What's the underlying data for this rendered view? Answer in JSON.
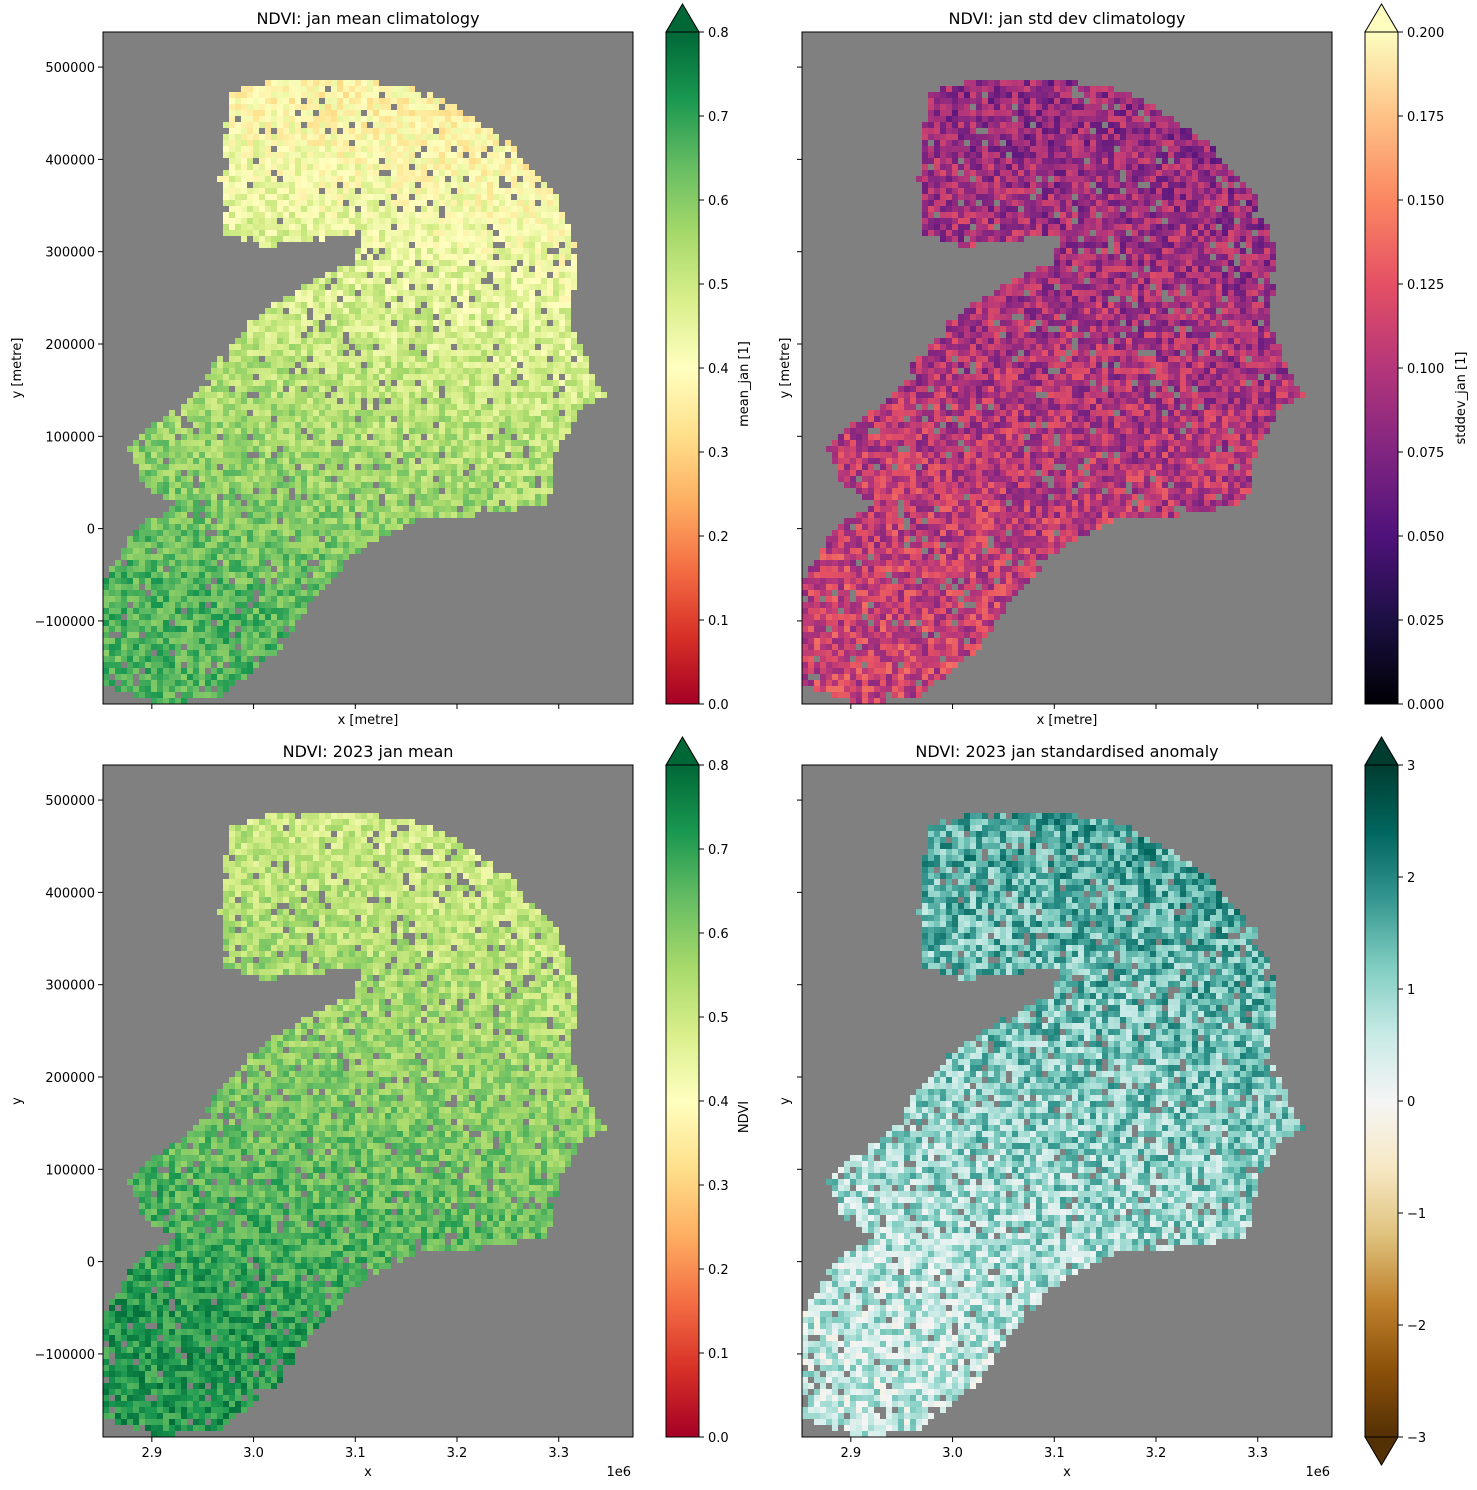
{
  "figure": {
    "background": "#ffffff",
    "nodata_color": "#808080",
    "x_offset_label": "1e6"
  },
  "chart_data": [
    {
      "type": "heatmap",
      "id": "p1",
      "title": "NDVI: jan mean climatology",
      "xlabel": "x [metre]",
      "ylabel": "y [metre]",
      "xlim": [
        2.852,
        3.373
      ],
      "ylim": [
        -190000,
        538000
      ],
      "x_ticks": [
        2.9,
        3.0,
        3.1,
        3.2,
        3.3
      ],
      "x_tick_labels": [],
      "y_ticks": [
        -100000,
        0,
        100000,
        200000,
        300000,
        400000,
        500000
      ],
      "y_tick_labels": [
        "−100000",
        "0",
        "100000",
        "200000",
        "300000",
        "400000",
        "500000"
      ],
      "colormap": "RdYlGn",
      "colormap_stops": [
        "#a50026",
        "#d73027",
        "#f46d43",
        "#fdae61",
        "#fee08b",
        "#ffffbf",
        "#d9ef8b",
        "#a6d96a",
        "#66bd63",
        "#1a9850",
        "#006837"
      ],
      "colorbar_label": "mean_jan [1]",
      "colorbar_range": [
        0.0,
        0.8
      ],
      "colorbar_ticks": [
        0.0,
        0.1,
        0.2,
        0.3,
        0.4,
        0.5,
        0.6,
        0.7,
        0.8
      ],
      "colorbar_tick_labels": [
        "0.0",
        "0.1",
        "0.2",
        "0.3",
        "0.4",
        "0.5",
        "0.6",
        "0.7",
        "0.8"
      ],
      "colorbar_extend": "max",
      "value_pattern": {
        "north": 0.38,
        "south": 0.66,
        "noise": 0.07
      }
    },
    {
      "type": "heatmap",
      "id": "p2",
      "title": "NDVI: jan std dev climatology",
      "xlabel": "x [metre]",
      "ylabel": "y [metre]",
      "xlim": [
        2.852,
        3.373
      ],
      "ylim": [
        -190000,
        538000
      ],
      "x_ticks": [
        2.9,
        3.0,
        3.1,
        3.2,
        3.3
      ],
      "x_tick_labels": [],
      "y_ticks": [
        -100000,
        0,
        100000,
        200000,
        300000,
        400000,
        500000
      ],
      "y_tick_labels": [],
      "colormap": "magma",
      "colormap_stops": [
        "#000004",
        "#1c1044",
        "#4f127b",
        "#812581",
        "#b5367a",
        "#e55064",
        "#fb8761",
        "#fec287",
        "#fcfdbf"
      ],
      "colorbar_label": "stddev_jan [1]",
      "colorbar_range": [
        0.0,
        0.2
      ],
      "colorbar_ticks": [
        0.0,
        0.025,
        0.05,
        0.075,
        0.1,
        0.125,
        0.15,
        0.175,
        0.2
      ],
      "colorbar_tick_labels": [
        "0.000",
        "0.025",
        "0.050",
        "0.075",
        "0.100",
        "0.125",
        "0.150",
        "0.175",
        "0.200"
      ],
      "colorbar_extend": "max",
      "value_pattern": {
        "north": 0.085,
        "south": 0.11,
        "noise": 0.03
      }
    },
    {
      "type": "heatmap",
      "id": "p3",
      "title": "NDVI: 2023 jan mean",
      "xlabel": "x",
      "ylabel": "y",
      "xlim": [
        2.852,
        3.373
      ],
      "ylim": [
        -190000,
        538000
      ],
      "x_ticks": [
        2.9,
        3.0,
        3.1,
        3.2,
        3.3
      ],
      "x_tick_labels": [
        "2.9",
        "3.0",
        "3.1",
        "3.2",
        "3.3"
      ],
      "y_ticks": [
        -100000,
        0,
        100000,
        200000,
        300000,
        400000,
        500000
      ],
      "y_tick_labels": [
        "−100000",
        "0",
        "100000",
        "200000",
        "300000",
        "400000",
        "500000"
      ],
      "colormap": "RdYlGn",
      "colormap_stops": [
        "#a50026",
        "#d73027",
        "#f46d43",
        "#fdae61",
        "#fee08b",
        "#ffffbf",
        "#d9ef8b",
        "#a6d96a",
        "#66bd63",
        "#1a9850",
        "#006837"
      ],
      "colorbar_label": "NDVI",
      "colorbar_range": [
        0.0,
        0.8
      ],
      "colorbar_ticks": [
        0.0,
        0.1,
        0.2,
        0.3,
        0.4,
        0.5,
        0.6,
        0.7,
        0.8
      ],
      "colorbar_tick_labels": [
        "0.0",
        "0.1",
        "0.2",
        "0.3",
        "0.4",
        "0.5",
        "0.6",
        "0.7",
        "0.8"
      ],
      "colorbar_extend": "max",
      "value_pattern": {
        "north": 0.5,
        "south": 0.72,
        "noise": 0.07
      }
    },
    {
      "type": "heatmap",
      "id": "p4",
      "title": "NDVI: 2023 jan standardised anomaly",
      "xlabel": "x",
      "ylabel": "y",
      "xlim": [
        2.852,
        3.373
      ],
      "ylim": [
        -190000,
        538000
      ],
      "x_ticks": [
        2.9,
        3.0,
        3.1,
        3.2,
        3.3
      ],
      "x_tick_labels": [
        "2.9",
        "3.0",
        "3.1",
        "3.2",
        "3.3"
      ],
      "y_ticks": [
        -100000,
        0,
        100000,
        200000,
        300000,
        400000,
        500000
      ],
      "y_tick_labels": [],
      "colormap": "BrBG",
      "colormap_stops": [
        "#543005",
        "#8c510a",
        "#bf812d",
        "#dfc27d",
        "#f6e8c3",
        "#f5f5f5",
        "#c7eae5",
        "#80cdc1",
        "#35978f",
        "#01665e",
        "#003c30"
      ],
      "colorbar_label": "",
      "colorbar_range": [
        -3,
        3
      ],
      "colorbar_ticks": [
        -3,
        -2,
        -1,
        0,
        1,
        2,
        3
      ],
      "colorbar_tick_labels": [
        "−3",
        "−2",
        "−1",
        "0",
        "1",
        "2",
        "3"
      ],
      "colorbar_extend": "both",
      "value_pattern": {
        "north": 1.6,
        "south": 0.6,
        "noise": 0.8
      }
    }
  ]
}
